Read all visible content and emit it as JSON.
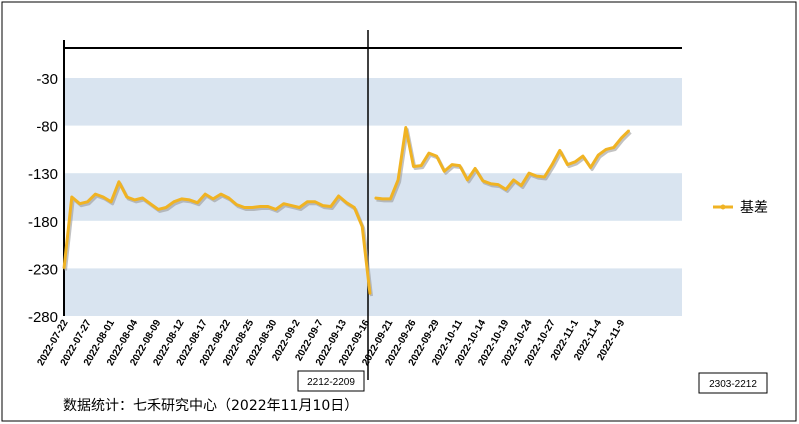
{
  "chart_data": {
    "type": "line",
    "title": "",
    "xlabel": "",
    "ylabel": "",
    "ylim": [
      -280,
      0
    ],
    "yticks": [
      -30,
      -80,
      -130,
      -180,
      -230,
      -280
    ],
    "grid": "alternating horizontal bands",
    "legend_position": "right",
    "series": [
      {
        "name": "基差",
        "color": "#F0B323",
        "segments": [
          {
            "values": [
              -230,
              -155,
              -162,
              -160,
              -152,
              -155,
              -160,
              -139,
              -155,
              -158,
              -156,
              -162,
              -168,
              -166,
              -160,
              -157,
              -158,
              -161,
              -152,
              -157,
              -152,
              -156,
              -163,
              -166,
              -166,
              -165,
              -165,
              -168,
              -162,
              -164,
              -166,
              -160,
              -160,
              -164,
              -165,
              -154,
              -161,
              -166,
              -186,
              -257
            ]
          },
          {
            "values": [
              -156,
              -157,
              -157,
              -137,
              -82,
              -123,
              -122,
              -109,
              -112,
              -128,
              -121,
              -122,
              -137,
              -125,
              -138,
              -141,
              -142,
              -147,
              -137,
              -143,
              -130,
              -133,
              -134,
              -121,
              -106,
              -121,
              -118,
              -112,
              -124,
              -111,
              -105,
              -103,
              -93,
              -85
            ]
          }
        ]
      }
    ],
    "x_tick_labels": [
      "2022-07-22",
      "2022-07-27",
      "2022-08-01",
      "2022-08-04",
      "2022-08-09",
      "2022-08-12",
      "2022-08-17",
      "2022-08-22",
      "2022-08-25",
      "2022-08-30",
      "2022-09-2",
      "2022-09-7",
      "2022-09-13",
      "2022-09-16",
      "2022-09-21",
      "2022-09-26",
      "2022-09-29",
      "2022-10-11",
      "2022-10-14",
      "2022-10-19",
      "2022-10-24",
      "2022-10-27",
      "2022-11-1",
      "2022-11-4",
      "2022-11-9"
    ],
    "annotations": [
      {
        "text": "2212-2209",
        "kind": "contract-switch"
      },
      {
        "text": "2303-2212",
        "kind": "contract-switch"
      }
    ],
    "source_note": "数据统计：七禾研究中心（2022年11月10日）"
  },
  "colors": {
    "band": "#D9E4F0",
    "series": "#F0B323",
    "shadow": "#9A9A9A",
    "axis": "#000000"
  }
}
